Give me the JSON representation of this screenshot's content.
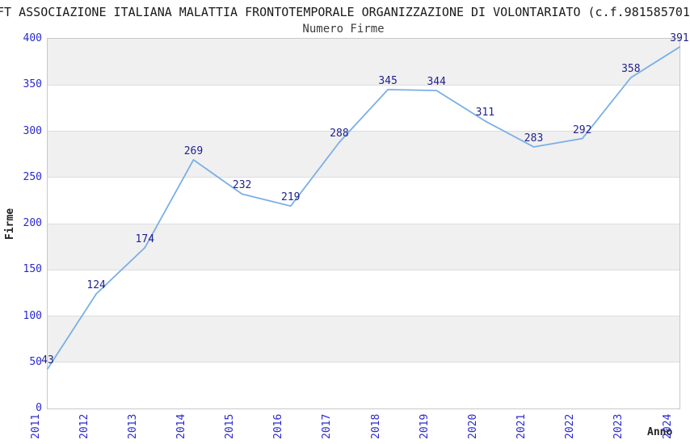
{
  "chart_data": {
    "type": "line",
    "title": "FT ASSOCIAZIONE ITALIANA MALATTIA FRONTOTEMPORALE ORGANIZZAZIONE DI VOLONTARIATO (c.f.981585701",
    "subtitle": "Numero Firme",
    "xlabel": "Anno",
    "ylabel": "Firme",
    "categories": [
      "2011",
      "2012",
      "2013",
      "2014",
      "2015",
      "2016",
      "2017",
      "2018",
      "2019",
      "2020",
      "2021",
      "2022",
      "2023",
      "2024"
    ],
    "values": [
      43,
      124,
      174,
      269,
      232,
      219,
      288,
      345,
      344,
      311,
      283,
      292,
      358,
      391
    ],
    "ylim": [
      0,
      400
    ],
    "yticks": [
      0,
      50,
      100,
      150,
      200,
      250,
      300,
      350,
      400
    ],
    "grid": true,
    "legend": "none",
    "band_pattern": "alternating-from-top",
    "colors": {
      "line": "#7aafe6",
      "tick_label": "#2929cf",
      "data_label": "#22228e",
      "band": "#f0f0f0",
      "grid": "#dddddd",
      "plot_border": "#c8c8c8",
      "title": "#1a1a1a",
      "subtitle": "#3c3c3c",
      "axis_title": "#222222"
    }
  }
}
